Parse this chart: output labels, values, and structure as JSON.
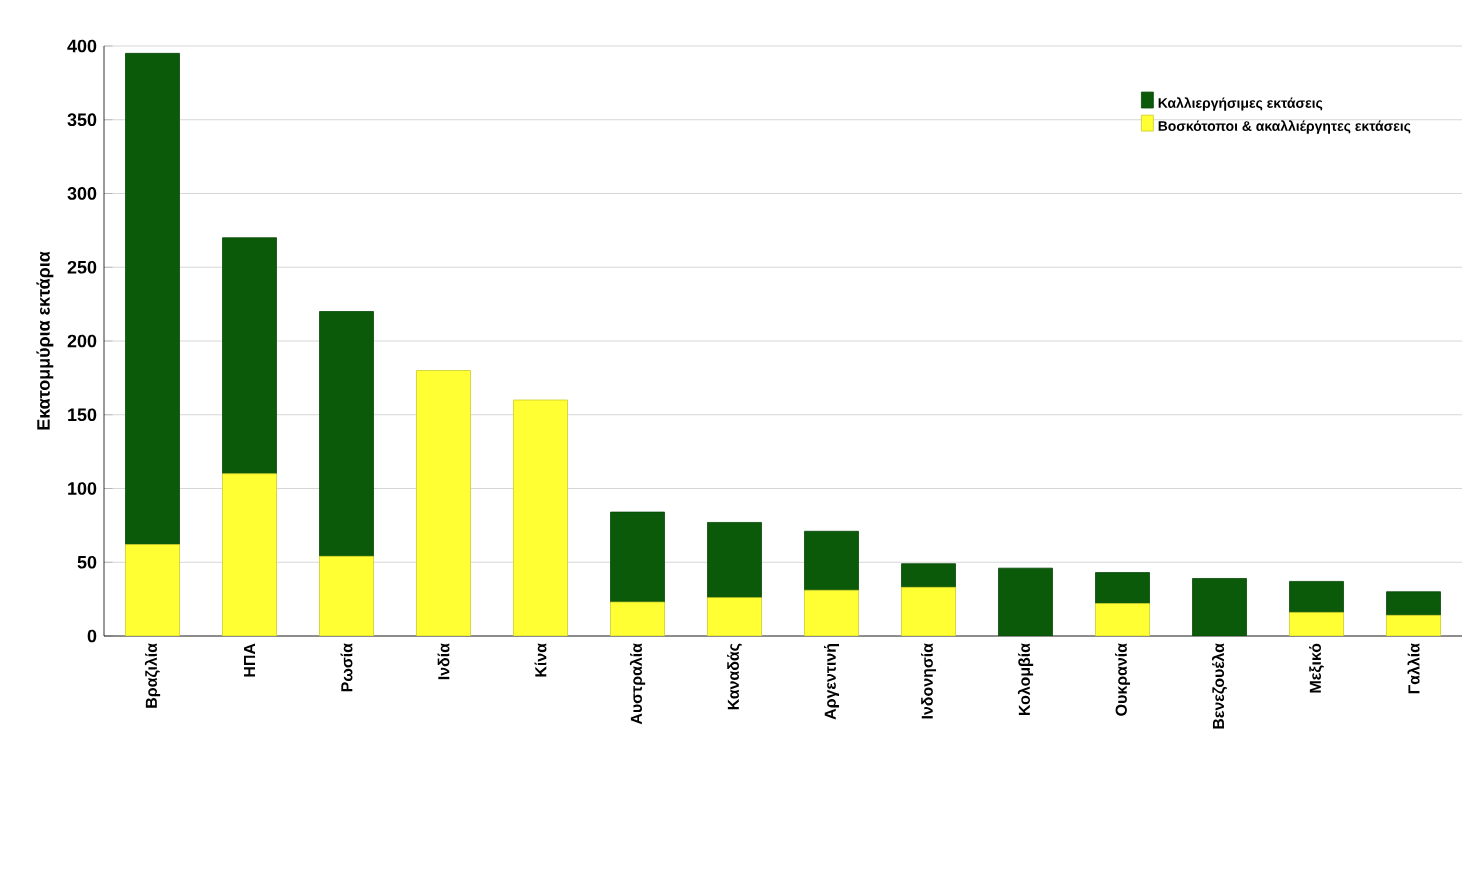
{
  "chart_data": {
    "type": "bar",
    "stacked": true,
    "ylabel": "Εκατομμύρια εκτάρια",
    "categories": [
      "Βραζιλία",
      "ΗΠΑ",
      "Ρωσία",
      "Ινδία",
      "Κίνα",
      "Αυστραλία",
      "Καναδάς",
      "Αργεντινή",
      "Ινδονησία",
      "Κολομβία",
      "Ουκρανία",
      "Βενεζουέλα",
      "Μεξικό",
      "Γαλλία"
    ],
    "series": [
      {
        "name": "Βοσκότοποι & ακαλλιέργητες εκτάσεις",
        "color": "#ffff33",
        "values": [
          62,
          110,
          54,
          180,
          160,
          23,
          26,
          31,
          33,
          0,
          22,
          0,
          16,
          14
        ]
      },
      {
        "name": "Καλλιεργήσιμες εκτάσεις",
        "color": "#0a5a0a",
        "values": [
          333,
          160,
          166,
          0,
          0,
          61,
          51,
          40,
          16,
          46,
          21,
          39,
          21,
          16
        ]
      }
    ],
    "ylim": [
      0,
      400
    ],
    "yticks": [
      0,
      50,
      100,
      150,
      200,
      250,
      300,
      350,
      400
    ],
    "grid": "y",
    "legend": "top right"
  }
}
